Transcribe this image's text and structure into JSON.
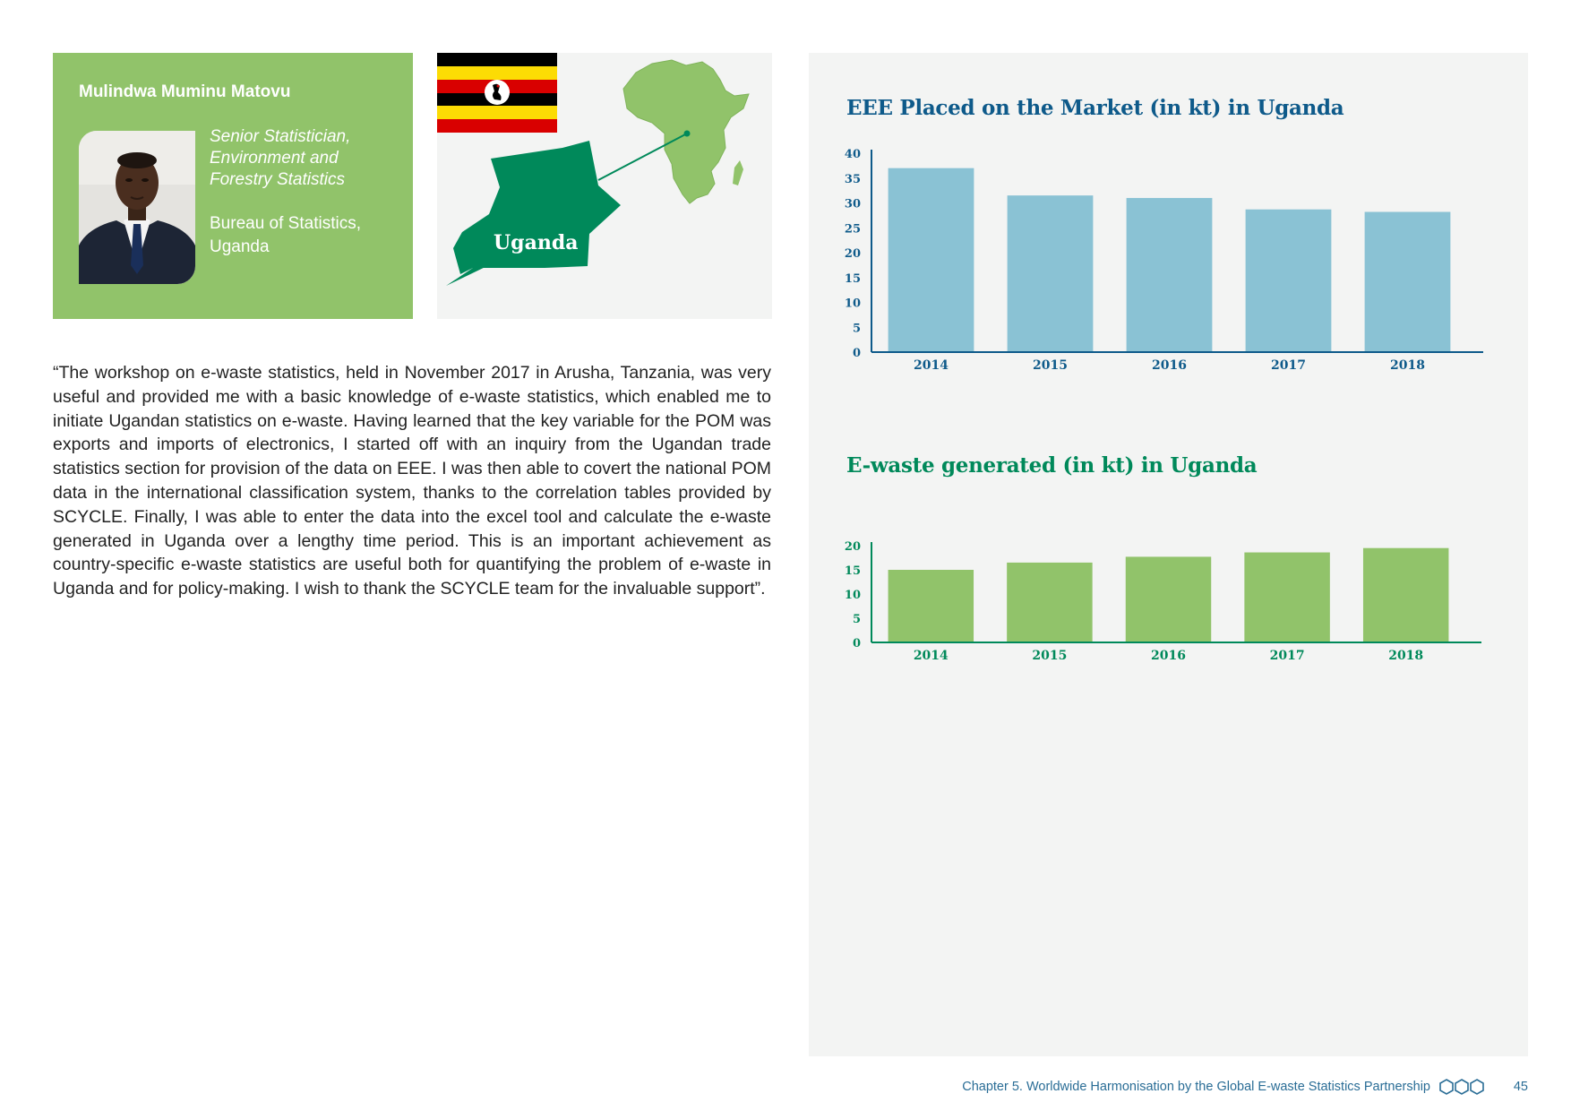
{
  "profile": {
    "name": "Mulindwa Muminu Matovu",
    "role_lines": [
      "Senior Statistician,",
      "Environment and",
      "Forestry Statistics"
    ],
    "org_lines": [
      "Bureau of Statistics,",
      "Uganda"
    ]
  },
  "map": {
    "country_label": "Uganda",
    "colors": {
      "continent": "#91c36a",
      "country": "#00895a",
      "line": "#00895a"
    }
  },
  "quote": {
    "text": "“The workshop on e-waste statistics, held in November 2017 in Arusha, Tanzania, was very useful and provided me with a basic knowledge of e-waste statistics, which enabled me to initiate Ugandan statistics on e-waste. Having learned that the key variable for the POM was exports and imports of electronics, I started off with an inquiry from the Ugandan trade statistics section for provision of the data on EEE. I was then able to covert the national POM data in the international classification system, thanks to the correlation tables provided by SCYCLE. Finally, I was able to enter the data into the excel tool and calculate the e-waste generated in Uganda over a lengthy time period. This is an important achievement as country-specific e-waste statistics are useful both for quantifying the problem of e-waste in Uganda and for policy-making. I wish to thank the SCYCLE team for the invaluable support”."
  },
  "chart_data": [
    {
      "type": "bar",
      "title": "EEE Placed on the Market (in kt) in Uganda",
      "categories": [
        "2014",
        "2015",
        "2016",
        "2017",
        "2018"
      ],
      "values": [
        37,
        31.5,
        31,
        28.7,
        28.2
      ],
      "ylim": [
        0,
        40
      ],
      "yticks": [
        "0",
        "5",
        "10",
        "15",
        "20",
        "25",
        "30",
        "35",
        "40"
      ],
      "grid": false,
      "bar_color": "#8ac2d4",
      "axis_color": "#0e5a8a",
      "label_color": "#0e5a8a"
    },
    {
      "type": "bar",
      "title": "E-waste generated (in kt) in Uganda",
      "categories": [
        "2014",
        "2015",
        "2016",
        "2017",
        "2018"
      ],
      "values": [
        15,
        16.5,
        17.7,
        18.6,
        19.5
      ],
      "ylim": [
        0,
        20
      ],
      "yticks": [
        "0",
        "5",
        "10",
        "15",
        "20"
      ],
      "grid": false,
      "bar_color": "#91c36a",
      "axis_color": "#00895a",
      "label_color": "#00895a"
    }
  ],
  "footer": {
    "chapter_text": "Chapter 5. Worldwide Harmonisation by the Global E-waste Statistics Partnership",
    "icon": "hexagons-icon",
    "page_number": "45"
  }
}
